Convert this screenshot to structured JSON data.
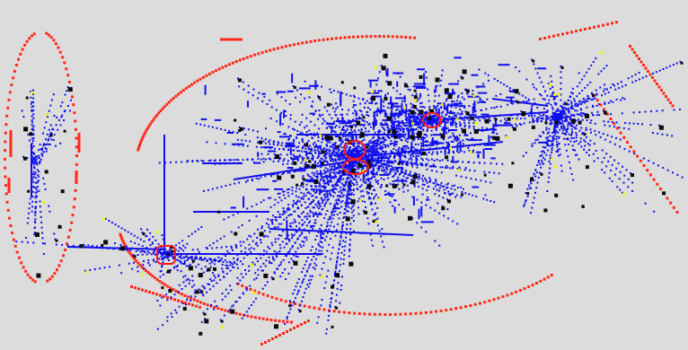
{
  "canvas": {
    "background_color": "#dcdcdc"
  },
  "colors": {
    "edge": "#1010ee",
    "node": "#0a0a0a",
    "highlight_node": "#f0f000",
    "boundary": "#ff2a1a",
    "selection_ring": "#ff1a1a"
  },
  "rendering": {
    "style": "dense point-and-line network graph on gray canvas",
    "hub_count": 4,
    "selected_nodes": 4
  }
}
